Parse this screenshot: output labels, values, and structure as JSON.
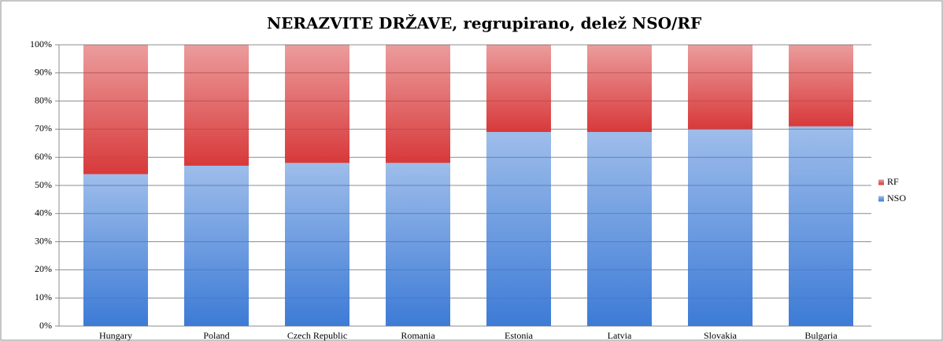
{
  "chart_data": {
    "type": "stacked_bar",
    "title": "NERAZVITE DRŽAVE, regrupirano, delež NSO/RF",
    "categories": [
      "Hungary",
      "Poland",
      "Czech Republic",
      "Romania",
      "Estonia",
      "Latvia",
      "Slovakia",
      "Bulgaria"
    ],
    "series": [
      {
        "name": "NSO",
        "color": "#3d7bd6",
        "values": [
          54,
          57,
          58,
          58,
          69,
          69,
          70,
          71
        ]
      },
      {
        "name": "RF",
        "color": "#d8393a",
        "values": [
          46,
          43,
          42,
          42,
          31,
          31,
          30,
          29
        ]
      }
    ],
    "ylim": [
      0,
      100
    ],
    "yticks": [
      {
        "value": 0,
        "label": "0%"
      },
      {
        "value": 10,
        "label": "10%"
      },
      {
        "value": 20,
        "label": "20%"
      },
      {
        "value": 30,
        "label": "30%"
      },
      {
        "value": 40,
        "label": "40%"
      },
      {
        "value": 50,
        "label": "50%"
      },
      {
        "value": 60,
        "label": "60%"
      },
      {
        "value": 70,
        "label": "70%"
      },
      {
        "value": 80,
        "label": "80%"
      },
      {
        "value": 90,
        "label": "90%"
      },
      {
        "value": 100,
        "label": "100%"
      }
    ],
    "grid": true,
    "legend": "right"
  }
}
